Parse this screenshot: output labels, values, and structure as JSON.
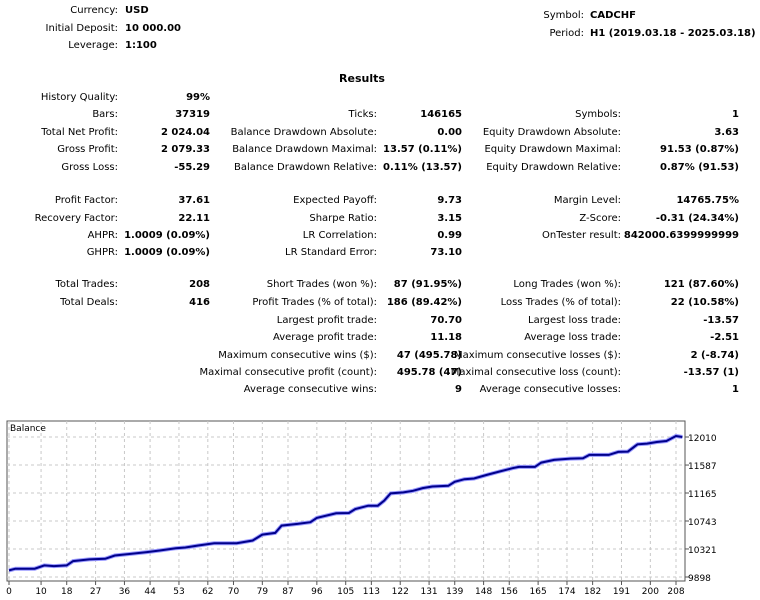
{
  "header": {
    "currency_label": "Currency:",
    "currency": "USD",
    "deposit_label": "Initial Deposit:",
    "deposit": "10 000.00",
    "leverage_label": "Leverage:",
    "leverage": "1:100",
    "symbol_label": "Symbol:",
    "symbol": "CADCHF",
    "period_label": "Period:",
    "period": "H1 (2019.03.18 - 2025.03.18)"
  },
  "results": {
    "title": "Results",
    "rows": [
      [
        "History Quality:",
        "99%",
        "",
        "",
        "",
        ""
      ],
      [
        "Bars:",
        "37319",
        "Ticks:",
        "146165",
        "Symbols:",
        "1"
      ],
      [
        "Total Net Profit:",
        "2 024.04",
        "Balance Drawdown Absolute:",
        "0.00",
        "Equity Drawdown Absolute:",
        "3.63"
      ],
      [
        "Gross Profit:",
        "2 079.33",
        "Balance Drawdown Maximal:",
        "13.57 (0.11%)",
        "Equity Drawdown Maximal:",
        "91.53 (0.87%)"
      ],
      [
        "Gross Loss:",
        "-55.29",
        "Balance Drawdown Relative:",
        "0.11% (13.57)",
        "Equity Drawdown Relative:",
        "0.87% (91.53)"
      ],
      [
        "Profit Factor:",
        "37.61",
        "Expected Payoff:",
        "9.73",
        "Margin Level:",
        "14765.75%"
      ],
      [
        "Recovery Factor:",
        "22.11",
        "Sharpe Ratio:",
        "3.15",
        "Z-Score:",
        "-0.31 (24.34%)"
      ],
      [
        "AHPR:",
        "1.0009 (0.09%)",
        "LR Correlation:",
        "0.99",
        "OnTester result:",
        "842000.6399999999"
      ],
      [
        "GHPR:",
        "1.0009 (0.09%)",
        "LR Standard Error:",
        "73.10",
        "",
        ""
      ],
      [
        "Total Trades:",
        "208",
        "Short Trades (won %):",
        "87 (91.95%)",
        "Long Trades (won %):",
        "121 (87.60%)"
      ],
      [
        "Total Deals:",
        "416",
        "Profit Trades (% of total):",
        "186 (89.42%)",
        "Loss Trades (% of total):",
        "22 (10.58%)"
      ],
      [
        "",
        "",
        "Largest profit trade:",
        "70.70",
        "Largest loss trade:",
        "-13.57"
      ],
      [
        "",
        "",
        "Average profit trade:",
        "11.18",
        "Average loss trade:",
        "-2.51"
      ],
      [
        "",
        "",
        "Maximum consecutive wins ($):",
        "47 (495.78)",
        "Maximum consecutive losses ($):",
        "2 (-8.74)"
      ],
      [
        "",
        "",
        "Maximal consecutive profit (count):",
        "495.78 (47)",
        "Maximal consecutive loss (count):",
        "-13.57 (1)"
      ],
      [
        "",
        "",
        "Average consecutive wins:",
        "9",
        "Average consecutive losses:",
        "1"
      ]
    ]
  },
  "chart_data": {
    "type": "line",
    "series": [
      {
        "name": "Balance",
        "color": "#00008b",
        "x": [
          0,
          2,
          8,
          11,
          14,
          18,
          20,
          25,
          30,
          33,
          36,
          43,
          47,
          52,
          55,
          59,
          64,
          71,
          76,
          79,
          83,
          85,
          90,
          94,
          96,
          102,
          106,
          108,
          112,
          115,
          117,
          119,
          123,
          126,
          129,
          132,
          137,
          139,
          142,
          145,
          149,
          153,
          157,
          159,
          164,
          166,
          170,
          175,
          179,
          181,
          187,
          190,
          193,
          196,
          199,
          202,
          205,
          208,
          210
        ],
        "y": [
          9998,
          10023,
          10023,
          10073,
          10063,
          10073,
          10138,
          10163,
          10173,
          10223,
          10238,
          10273,
          10298,
          10333,
          10343,
          10373,
          10408,
          10408,
          10448,
          10538,
          10563,
          10674,
          10699,
          10724,
          10789,
          10859,
          10864,
          10924,
          10974,
          10974,
          11049,
          11159,
          11174,
          11199,
          11239,
          11264,
          11274,
          11334,
          11374,
          11384,
          11439,
          11489,
          11539,
          11559,
          11559,
          11624,
          11664,
          11684,
          11689,
          11740,
          11740,
          11785,
          11790,
          11900,
          11910,
          11935,
          11950,
          12025,
          12010
        ]
      }
    ],
    "x_ticks": [
      0,
      10,
      18,
      27,
      36,
      44,
      53,
      62,
      70,
      79,
      87,
      96,
      105,
      113,
      122,
      131,
      139,
      148,
      156,
      165,
      174,
      182,
      191,
      200,
      208
    ],
    "y_ticks": [
      9898,
      10321,
      10743,
      11165,
      11587,
      12010
    ],
    "ylim": [
      9898,
      12010
    ],
    "grid": true,
    "legend": "top-left"
  }
}
